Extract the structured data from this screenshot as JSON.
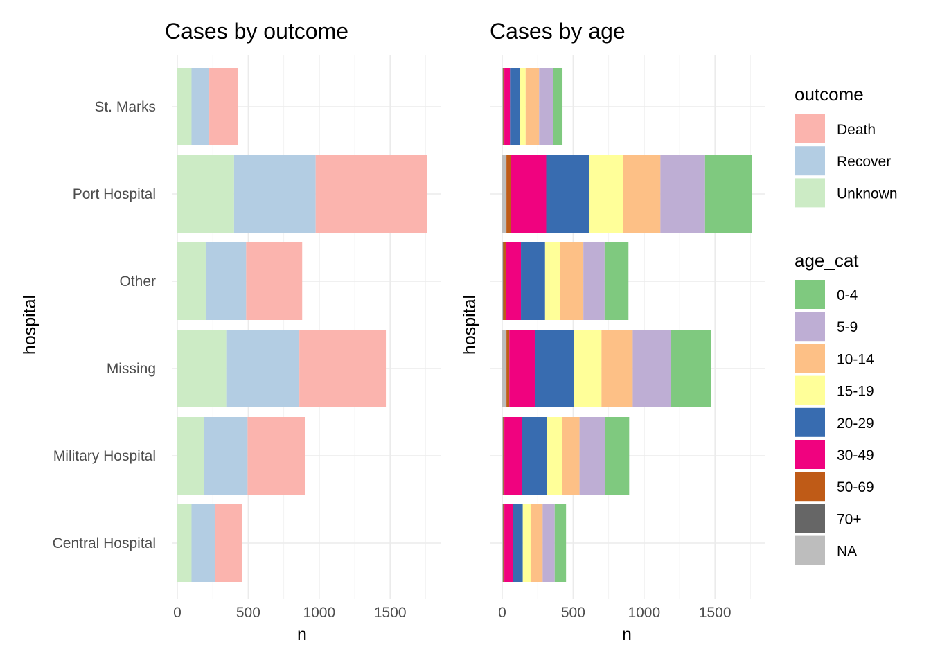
{
  "chart_data": [
    {
      "type": "bar",
      "orientation": "horizontal",
      "stacked": true,
      "title": "Cases by outcome",
      "xlabel": "n",
      "ylabel": "hospital",
      "xlim": [
        0,
        1850
      ],
      "x_ticks": [
        0,
        500,
        1000,
        1500
      ],
      "grid": true,
      "categories": [
        "St. Marks",
        "Port Hospital",
        "Other",
        "Missing",
        "Military Hospital",
        "Central Hospital"
      ],
      "series": [
        {
          "name": "Unknown",
          "color": "#ccebc5",
          "values": [
            100,
            400,
            200,
            345,
            190,
            100
          ]
        },
        {
          "name": "Recover",
          "color": "#b3cde3",
          "values": [
            125,
            575,
            285,
            515,
            305,
            165
          ]
        },
        {
          "name": "Death",
          "color": "#fbb4ae",
          "values": [
            200,
            787,
            395,
            610,
            405,
            190
          ]
        }
      ]
    },
    {
      "type": "bar",
      "orientation": "horizontal",
      "stacked": true,
      "title": "Cases by age",
      "xlabel": "n",
      "ylabel": "hospital",
      "xlim": [
        0,
        1850
      ],
      "x_ticks": [
        0,
        500,
        1000,
        1500
      ],
      "grid": true,
      "categories": [
        "St. Marks",
        "Port Hospital",
        "Other",
        "Missing",
        "Military Hospital",
        "Central Hospital"
      ],
      "series": [
        {
          "name": "NA",
          "color": "#bdbdbd",
          "values": [
            5,
            25,
            5,
            25,
            5,
            5
          ]
        },
        {
          "name": "70+",
          "color": "#666666",
          "values": [
            2,
            5,
            2,
            5,
            2,
            2
          ]
        },
        {
          "name": "50-69",
          "color": "#bf5b17",
          "values": [
            8,
            30,
            20,
            20,
            8,
            8
          ]
        },
        {
          "name": "30-49",
          "color": "#f0027f",
          "values": [
            40,
            250,
            105,
            180,
            125,
            60
          ]
        },
        {
          "name": "20-29",
          "color": "#386cb0",
          "values": [
            70,
            305,
            170,
            275,
            175,
            70
          ]
        },
        {
          "name": "15-19",
          "color": "#ffff99",
          "values": [
            40,
            235,
            105,
            195,
            105,
            55
          ]
        },
        {
          "name": "10-14",
          "color": "#fdc086",
          "values": [
            95,
            265,
            165,
            220,
            125,
            85
          ]
        },
        {
          "name": "5-9",
          "color": "#beaed4",
          "values": [
            100,
            315,
            150,
            270,
            180,
            85
          ]
        },
        {
          "name": "0-4",
          "color": "#7fc97f",
          "values": [
            65,
            332,
            168,
            280,
            170,
            80
          ]
        }
      ]
    }
  ],
  "legend": {
    "position": "right",
    "outcome": {
      "title": "outcome",
      "items": [
        {
          "label": "Death",
          "color": "#fbb4ae"
        },
        {
          "label": "Recover",
          "color": "#b3cde3"
        },
        {
          "label": "Unknown",
          "color": "#ccebc5"
        }
      ]
    },
    "age_cat": {
      "title": "age_cat",
      "items": [
        {
          "label": "0-4",
          "color": "#7fc97f"
        },
        {
          "label": "5-9",
          "color": "#beaed4"
        },
        {
          "label": "10-14",
          "color": "#fdc086"
        },
        {
          "label": "15-19",
          "color": "#ffff99"
        },
        {
          "label": "20-29",
          "color": "#386cb0"
        },
        {
          "label": "30-49",
          "color": "#f0027f"
        },
        {
          "label": "50-69",
          "color": "#bf5b17"
        },
        {
          "label": "70+",
          "color": "#666666"
        },
        {
          "label": "NA",
          "color": "#bdbdbd"
        }
      ]
    }
  }
}
